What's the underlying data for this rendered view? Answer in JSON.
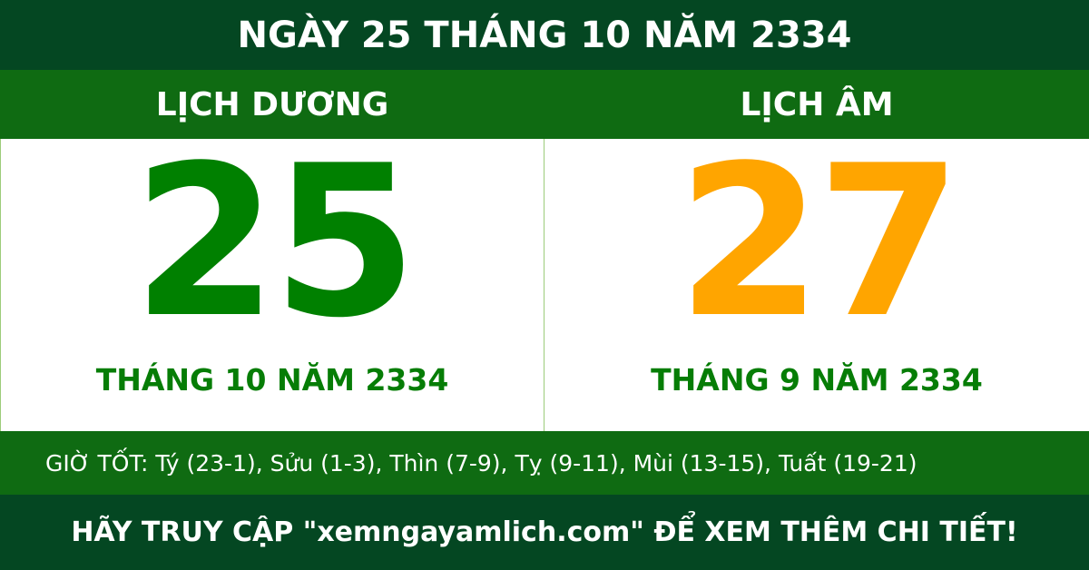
{
  "header": {
    "title": "NGÀY 25 THÁNG 10 NĂM 2334"
  },
  "solar": {
    "label": "LỊCH DƯƠNG",
    "day": "25",
    "month_year": "THÁNG 10 NĂM 2334"
  },
  "lunar": {
    "label": "LỊCH ÂM",
    "day": "27",
    "month_year": "THÁNG 9 NĂM 2334"
  },
  "good_hours": "GIỜ TỐT: Tý (23-1), Sửu (1-3), Thìn (7-9), Tỵ (9-11), Mùi (13-15), Tuất (19-21)",
  "footer": "HÃY TRUY CẬP \"xemngayamlich.com\" ĐỂ XEM THÊM CHI TIẾT!",
  "colors": {
    "dark_green": "#044722",
    "green": "#0f6b12",
    "solar_day": "#008000",
    "lunar_day": "#ffa500"
  }
}
